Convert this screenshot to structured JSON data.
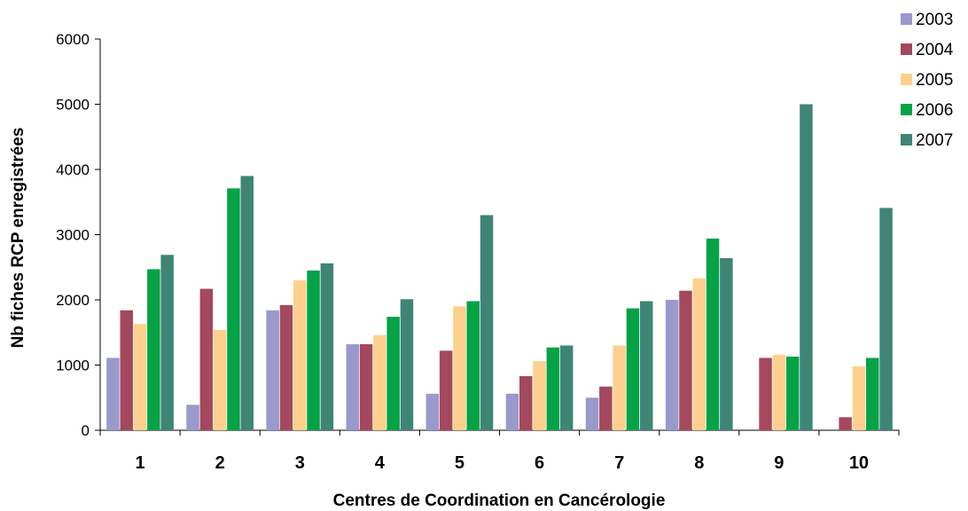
{
  "chart_data": {
    "type": "bar",
    "title": "",
    "xlabel": "Centres de Coordination en Cancérologie",
    "ylabel": "Nb fiches RCP enregistrées",
    "ylim": [
      0,
      6000
    ],
    "yticks": [
      "0",
      "1000",
      "2000",
      "3000",
      "4000",
      "5000",
      "6000"
    ],
    "categories": [
      "1",
      "2",
      "3",
      "4",
      "5",
      "6",
      "7",
      "8",
      "9",
      "10"
    ],
    "grid": false,
    "legend_position": "right",
    "series": [
      {
        "name": "2003",
        "color": "#9999cc",
        "values": [
          1110,
          390,
          1840,
          1320,
          560,
          560,
          500,
          2000,
          0,
          0
        ]
      },
      {
        "name": "2004",
        "color": "#a4485e",
        "values": [
          1840,
          2170,
          1920,
          1320,
          1220,
          830,
          670,
          2140,
          1110,
          200
        ]
      },
      {
        "name": "2005",
        "color": "#fdd08e",
        "values": [
          1630,
          1540,
          2300,
          1460,
          1900,
          1060,
          1300,
          2330,
          1160,
          980
        ]
      },
      {
        "name": "2006",
        "color": "#06a246",
        "values": [
          2470,
          3710,
          2450,
          1740,
          1980,
          1270,
          1870,
          2940,
          1130,
          1110
        ]
      },
      {
        "name": "2007",
        "color": "#3e8576",
        "values": [
          2690,
          3900,
          2560,
          2010,
          3300,
          1300,
          1980,
          2640,
          5000,
          3410
        ]
      }
    ]
  }
}
